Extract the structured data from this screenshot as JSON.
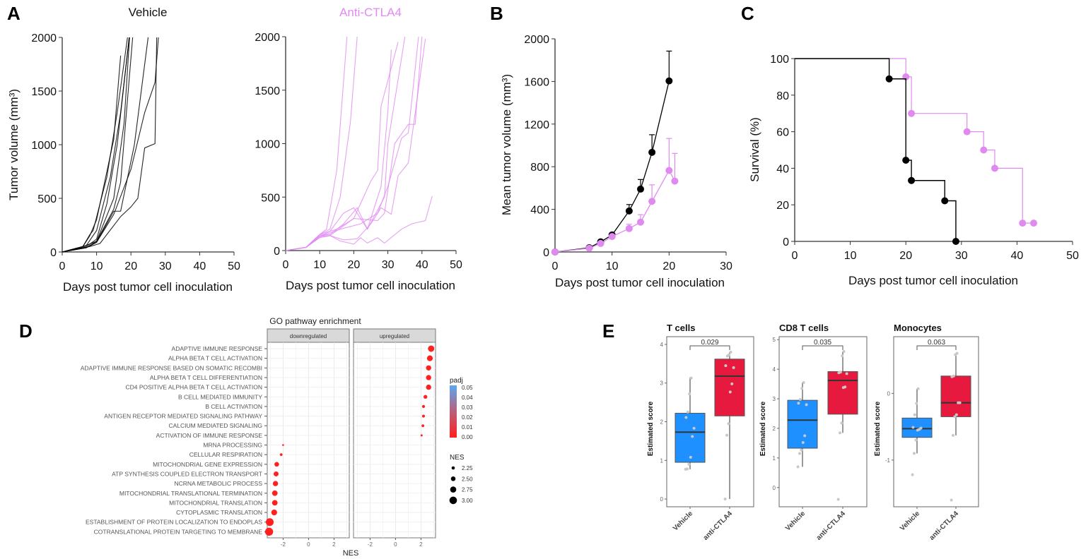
{
  "panel_letters": {
    "a": "A",
    "b": "B",
    "c": "C",
    "d": "D",
    "e": "E"
  },
  "colors": {
    "vehicle": "#000000",
    "anti_ctla4": "#e08af0",
    "box_vehicle": "#1e90ff",
    "box_anti": "#e8193f",
    "padj_low": "#ff2020",
    "padj_high": "#5aa8f0"
  },
  "chart_data": [
    {
      "id": "A_vehicle",
      "type": "line",
      "title": "Vehicle",
      "xlabel": "Days post tumor cell inoculation",
      "ylabel": "Tumor volume (mm³)",
      "xlim": [
        0,
        50
      ],
      "ylim": [
        0,
        2000
      ],
      "xticks": [
        0,
        10,
        20,
        30,
        40,
        50
      ],
      "yticks": [
        0,
        500,
        1000,
        1500,
        2000
      ],
      "series": [
        {
          "x": [
            0,
            6,
            8,
            10,
            15,
            17
          ],
          "y": [
            0,
            50,
            150,
            300,
            1050,
            1830
          ]
        },
        {
          "x": [
            0,
            6,
            8,
            9,
            13,
            16,
            19
          ],
          "y": [
            0,
            50,
            160,
            200,
            700,
            1300,
            2000
          ]
        },
        {
          "x": [
            0,
            7,
            10,
            14,
            17,
            19.5
          ],
          "y": [
            0,
            60,
            200,
            700,
            1300,
            2000
          ]
        },
        {
          "x": [
            0,
            7,
            10,
            13,
            16,
            19.5
          ],
          "y": [
            0,
            50,
            120,
            450,
            1000,
            2000
          ]
        },
        {
          "x": [
            0,
            7,
            10,
            15,
            18,
            19.6
          ],
          "y": [
            0,
            40,
            100,
            500,
            1200,
            2000
          ]
        },
        {
          "x": [
            0,
            6,
            10,
            15,
            17,
            20.5
          ],
          "y": [
            0,
            50,
            100,
            400,
            650,
            2000
          ]
        },
        {
          "x": [
            0,
            7,
            10,
            15,
            17,
            21,
            25
          ],
          "y": [
            0,
            40,
            90,
            380,
            380,
            1000,
            2000
          ]
        },
        {
          "x": [
            0,
            7,
            10,
            15,
            20,
            24,
            27,
            28
          ],
          "y": [
            0,
            40,
            90,
            350,
            770,
            1300,
            1580,
            2000
          ]
        },
        {
          "x": [
            0,
            8,
            11,
            17,
            20,
            22,
            24,
            27,
            27.5
          ],
          "y": [
            0,
            50,
            80,
            330,
            420,
            500,
            970,
            1010,
            2000
          ]
        }
      ]
    },
    {
      "id": "A_anti",
      "type": "line",
      "title": "Anti-CTLA4",
      "xlabel": "Days post tumor cell inoculation",
      "xlim": [
        0,
        50
      ],
      "ylim": [
        0,
        2000
      ],
      "xticks": [
        0,
        10,
        20,
        30,
        40,
        50
      ],
      "yticks": [
        0,
        500,
        1000,
        1500,
        2000
      ],
      "series": [
        {
          "x": [
            0,
            6,
            10,
            12,
            15,
            18
          ],
          "y": [
            0,
            30,
            150,
            200,
            750,
            2000
          ]
        },
        {
          "x": [
            0,
            6,
            10,
            13,
            16,
            19,
            21
          ],
          "y": [
            0,
            30,
            150,
            200,
            500,
            1200,
            2000
          ]
        },
        {
          "x": [
            0,
            6,
            10,
            13,
            17,
            20,
            24,
            28,
            30,
            31
          ],
          "y": [
            0,
            30,
            130,
            180,
            350,
            400,
            200,
            600,
            1300,
            1880
          ]
        },
        {
          "x": [
            0,
            6,
            10,
            15,
            20,
            25,
            27,
            28,
            33
          ],
          "y": [
            0,
            30,
            150,
            200,
            300,
            650,
            750,
            1350,
            1950
          ]
        },
        {
          "x": [
            0,
            6,
            10,
            13,
            17,
            21,
            24,
            29,
            30,
            35
          ],
          "y": [
            0,
            30,
            150,
            150,
            250,
            400,
            200,
            500,
            1000,
            2000
          ]
        },
        {
          "x": [
            0,
            6,
            10,
            16,
            22,
            27,
            30,
            34,
            36,
            39
          ],
          "y": [
            0,
            30,
            130,
            200,
            250,
            350,
            600,
            1050,
            1100,
            2000
          ]
        },
        {
          "x": [
            0,
            6,
            10,
            13,
            20,
            27,
            29,
            32,
            36,
            38,
            40
          ],
          "y": [
            0,
            30,
            140,
            140,
            300,
            280,
            350,
            1000,
            1180,
            1180,
            2000
          ]
        },
        {
          "x": [
            0,
            6,
            10,
            13,
            17,
            21,
            25,
            28,
            31,
            33,
            36,
            41
          ],
          "y": [
            0,
            30,
            120,
            140,
            100,
            110,
            250,
            400,
            340,
            700,
            820,
            1980
          ]
        },
        {
          "x": [
            0,
            6,
            10,
            13,
            16,
            20,
            22,
            24,
            27,
            29,
            34,
            37,
            41,
            43
          ],
          "y": [
            0,
            30,
            130,
            140,
            90,
            60,
            120,
            70,
            120,
            70,
            200,
            250,
            280,
            510
          ]
        }
      ]
    },
    {
      "id": "B",
      "type": "line",
      "xlabel": "Days post tumor cell inoculation",
      "ylabel": "Mean tumor volume (mm³)",
      "xlim": [
        0,
        30
      ],
      "ylim": [
        0,
        2000
      ],
      "xticks": [
        0,
        10,
        20,
        30
      ],
      "yticks": [
        0,
        400,
        800,
        1200,
        1600,
        2000
      ],
      "series": [
        {
          "group": "vehicle",
          "x": [
            0,
            6,
            8,
            10,
            13,
            15,
            17,
            20
          ],
          "y": [
            0,
            40,
            95,
            160,
            385,
            590,
            935,
            1605
          ],
          "error": [
            0,
            10,
            10,
            15,
            60,
            90,
            165,
            280
          ]
        },
        {
          "group": "anti_ctla4",
          "x": [
            0,
            6,
            8,
            10,
            13,
            15,
            17,
            20,
            21
          ],
          "y": [
            0,
            35,
            80,
            145,
            220,
            280,
            475,
            765,
            665
          ],
          "error": [
            0,
            10,
            10,
            15,
            40,
            70,
            155,
            300,
            260
          ]
        }
      ]
    },
    {
      "id": "C",
      "type": "line",
      "xlabel": "Days post tumor cell inoculation",
      "ylabel": "Survival (%)",
      "xlim": [
        0,
        50
      ],
      "ylim": [
        0,
        100
      ],
      "xticks": [
        0,
        10,
        20,
        30,
        40,
        50
      ],
      "yticks": [
        0,
        20,
        40,
        60,
        80,
        100
      ],
      "series": [
        {
          "group": "vehicle",
          "x": [
            0,
            17,
            20,
            21,
            27,
            29
          ],
          "y": [
            100,
            88.9,
            44.4,
            33.3,
            22.2,
            0
          ],
          "markers_x": [
            17,
            20,
            21,
            27,
            29
          ],
          "markers_y": [
            88.9,
            44.4,
            33.3,
            22.2,
            0
          ]
        },
        {
          "group": "anti_ctla4",
          "x": [
            0,
            20,
            21,
            31,
            34,
            36,
            41,
            43
          ],
          "y": [
            100,
            90,
            70,
            60,
            50,
            40,
            10,
            10
          ],
          "markers_x": [
            20,
            21,
            31,
            34,
            36,
            41,
            43
          ],
          "markers_y": [
            90,
            70,
            60,
            50,
            40,
            10,
            10
          ]
        }
      ]
    },
    {
      "id": "D",
      "type": "scatter",
      "title": "GO pathway enrichment",
      "xlabel": "NES",
      "facets": [
        "downregulated",
        "upregulated"
      ],
      "xticks": [
        -2,
        0,
        2
      ],
      "pathways": [
        "ADAPTIVE IMMUNE RESPONSE",
        "ALPHA BETA T CELL ACTIVATION",
        "ADAPTIVE IMMUNE RESPONSE BASED ON SOMATIC RECOMBI",
        "ALPHA BETA T CELL DIFFERENTIATION",
        "CD4 POSITIVE ALPHA BETA T CELL ACTIVATION",
        "B CELL MEDIATED IMMUNITY",
        "B CELL ACTIVATION",
        "ANTIGEN RECEPTOR MEDIATED SIGNALING PATHWAY",
        "CALCIUM MEDIATED SIGNALING",
        "ACTIVATION OF IMMUNE RESPONSE",
        "MRNA PROCESSING",
        "CELLULAR RESPIRATION",
        "MITOCHONDRIAL GENE EXPRESSION",
        "ATP SYNTHESIS COUPLED ELECTRON TRANSPORT",
        "NCRNA METABOLIC PROCESS",
        "MITOCHONDRIAL TRANSLATIONAL TERMINATION",
        "MITOCHONDRIAL TRANSLATION",
        "CYTOPLASMIC TRANSLATION",
        "ESTABLISHMENT OF PROTEIN LOCALIZATION TO ENDOPLAS",
        "COTRANSLATIONAL PROTEIN TARGETING TO MEMBRANE"
      ],
      "facet_of": [
        "upregulated",
        "upregulated",
        "upregulated",
        "upregulated",
        "upregulated",
        "upregulated",
        "upregulated",
        "upregulated",
        "upregulated",
        "upregulated",
        "downregulated",
        "downregulated",
        "downregulated",
        "downregulated",
        "downregulated",
        "downregulated",
        "downregulated",
        "downregulated",
        "downregulated",
        "downregulated"
      ],
      "nes": [
        2.8,
        2.7,
        2.6,
        2.6,
        2.6,
        2.35,
        2.2,
        2.2,
        2.15,
        2.05,
        -2.0,
        -2.15,
        -2.5,
        -2.55,
        -2.6,
        -2.65,
        -2.65,
        -2.7,
        -3.05,
        -3.1
      ],
      "padj": [
        0,
        0,
        0,
        0,
        0,
        0,
        0,
        0,
        0,
        0,
        0,
        0,
        0,
        0,
        0,
        0,
        0,
        0,
        0,
        0
      ],
      "legend": {
        "color_title": "padj",
        "color_ticks": [
          "0.05",
          "0.04",
          "0.03",
          "0.02",
          "0.01",
          "0.00"
        ],
        "size_title": "NES",
        "size_ticks": [
          "2.25",
          "2.50",
          "2.75",
          "3.00"
        ]
      }
    },
    {
      "id": "E",
      "type": "box",
      "ylabel": "Estimated score",
      "categories": [
        "Vehicle",
        "anti-CTLA4"
      ],
      "panels": [
        {
          "title": "T cells",
          "pvalue": "0.029",
          "ylim": [
            -0.2,
            4.2
          ],
          "yticks": [
            0,
            1,
            2,
            3,
            4
          ],
          "boxes": [
            {
              "q1": 0.95,
              "median": 1.73,
              "q3": 2.22,
              "wlo": 0.77,
              "whi": 3.15,
              "points": [
                0.77,
                0.78,
                0.9,
                1.08,
                1.62,
                1.83,
                2.11,
                2.25,
                2.72,
                3.13
              ]
            },
            {
              "q1": 2.15,
              "median": 3.18,
              "q3": 3.62,
              "wlo": 0.0,
              "whi": 3.8,
              "points": [
                0.0,
                1.65,
                1.95,
                2.77,
                2.98,
                3.4,
                3.45,
                3.7,
                3.73,
                3.8
              ]
            }
          ]
        },
        {
          "title": "CD8 T cells",
          "pvalue": "0.035",
          "ylim": [
            -0.65,
            5.1
          ],
          "yticks": [
            0,
            1,
            2,
            3,
            4,
            5
          ],
          "boxes": [
            {
              "q1": 1.33,
              "median": 2.28,
              "q3": 2.95,
              "wlo": 0.7,
              "whi": 3.55,
              "points": [
                0.7,
                1.15,
                1.27,
                1.52,
                1.75,
                2.8,
                2.85,
                2.98,
                3.35,
                3.55
              ]
            },
            {
              "q1": 2.48,
              "median": 3.62,
              "q3": 3.92,
              "wlo": 1.85,
              "whi": 4.6,
              "points": [
                -0.4,
                1.85,
                2.18,
                3.38,
                3.4,
                3.85,
                3.88,
                3.9,
                4.45,
                4.6
              ]
            }
          ]
        },
        {
          "title": "Monocytes",
          "pvalue": "0.063",
          "ylim": [
            -1.7,
            0.85
          ],
          "yticks": [
            -1,
            0
          ],
          "boxes": [
            {
              "q1": -0.66,
              "median": -0.53,
              "q3": -0.37,
              "wlo": -0.9,
              "whi": 0.07,
              "points": [
                -1.22,
                -0.9,
                -0.7,
                -0.55,
                -0.54,
                -0.52,
                -0.51,
                -0.32,
                -0.15,
                0.07
              ]
            },
            {
              "q1": -0.35,
              "median": -0.14,
              "q3": 0.26,
              "wlo": -0.63,
              "whi": 0.6,
              "points": [
                -1.6,
                -0.63,
                -0.35,
                -0.32,
                -0.14,
                -0.14,
                0.25,
                0.26,
                0.58,
                0.6
              ]
            }
          ]
        }
      ]
    }
  ]
}
